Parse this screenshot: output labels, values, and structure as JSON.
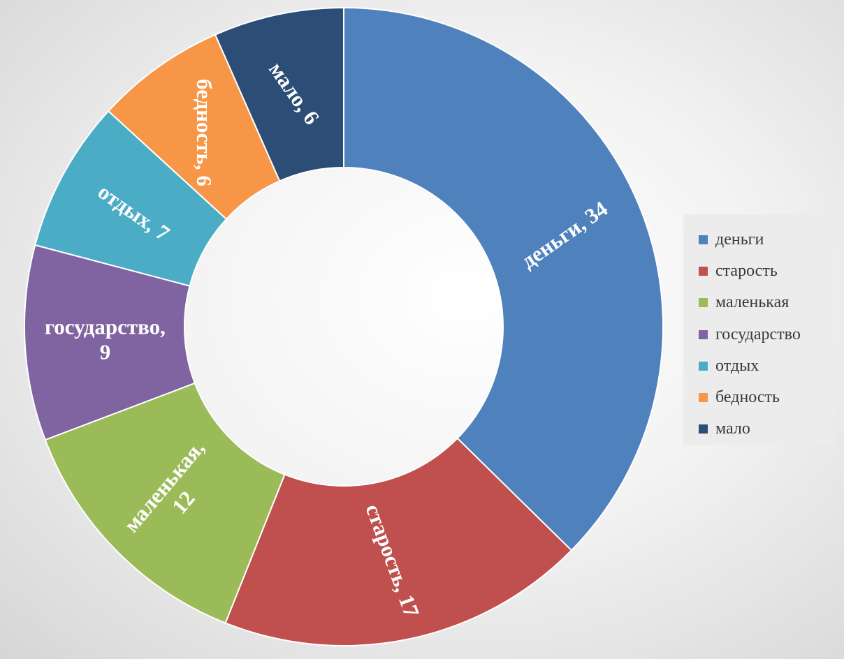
{
  "chart_data": {
    "type": "pie",
    "donut": true,
    "title": "",
    "categories": [
      "деньги",
      "старость",
      "маленькая",
      "государство",
      "отдых",
      "бедность",
      "мало"
    ],
    "values": [
      34,
      17,
      12,
      9,
      7,
      6,
      6
    ],
    "colors": [
      "#4F81BD",
      "#C0504D",
      "#9BBB59",
      "#8064A2",
      "#4BACC6",
      "#F79646",
      "#2C4D75"
    ],
    "data_labels": [
      [
        "деньги, 34"
      ],
      [
        "старость, 17"
      ],
      [
        "маленькая,",
        "12"
      ],
      [
        "государство,",
        "9"
      ],
      [
        "отдых, 7"
      ],
      [
        "бедность, 6"
      ],
      [
        "мало, 6"
      ]
    ],
    "legend_position": "right",
    "legend": {
      "items": [
        {
          "label": "деньги",
          "color": "#4F81BD"
        },
        {
          "label": "старость",
          "color": "#C0504D"
        },
        {
          "label": "маленькая",
          "color": "#9BBB59"
        },
        {
          "label": "государство",
          "color": "#8064A2"
        },
        {
          "label": "отдых",
          "color": "#4BACC6"
        },
        {
          "label": "бедность",
          "color": "#F79646"
        },
        {
          "label": "мало",
          "color": "#2C4D75"
        }
      ]
    }
  }
}
